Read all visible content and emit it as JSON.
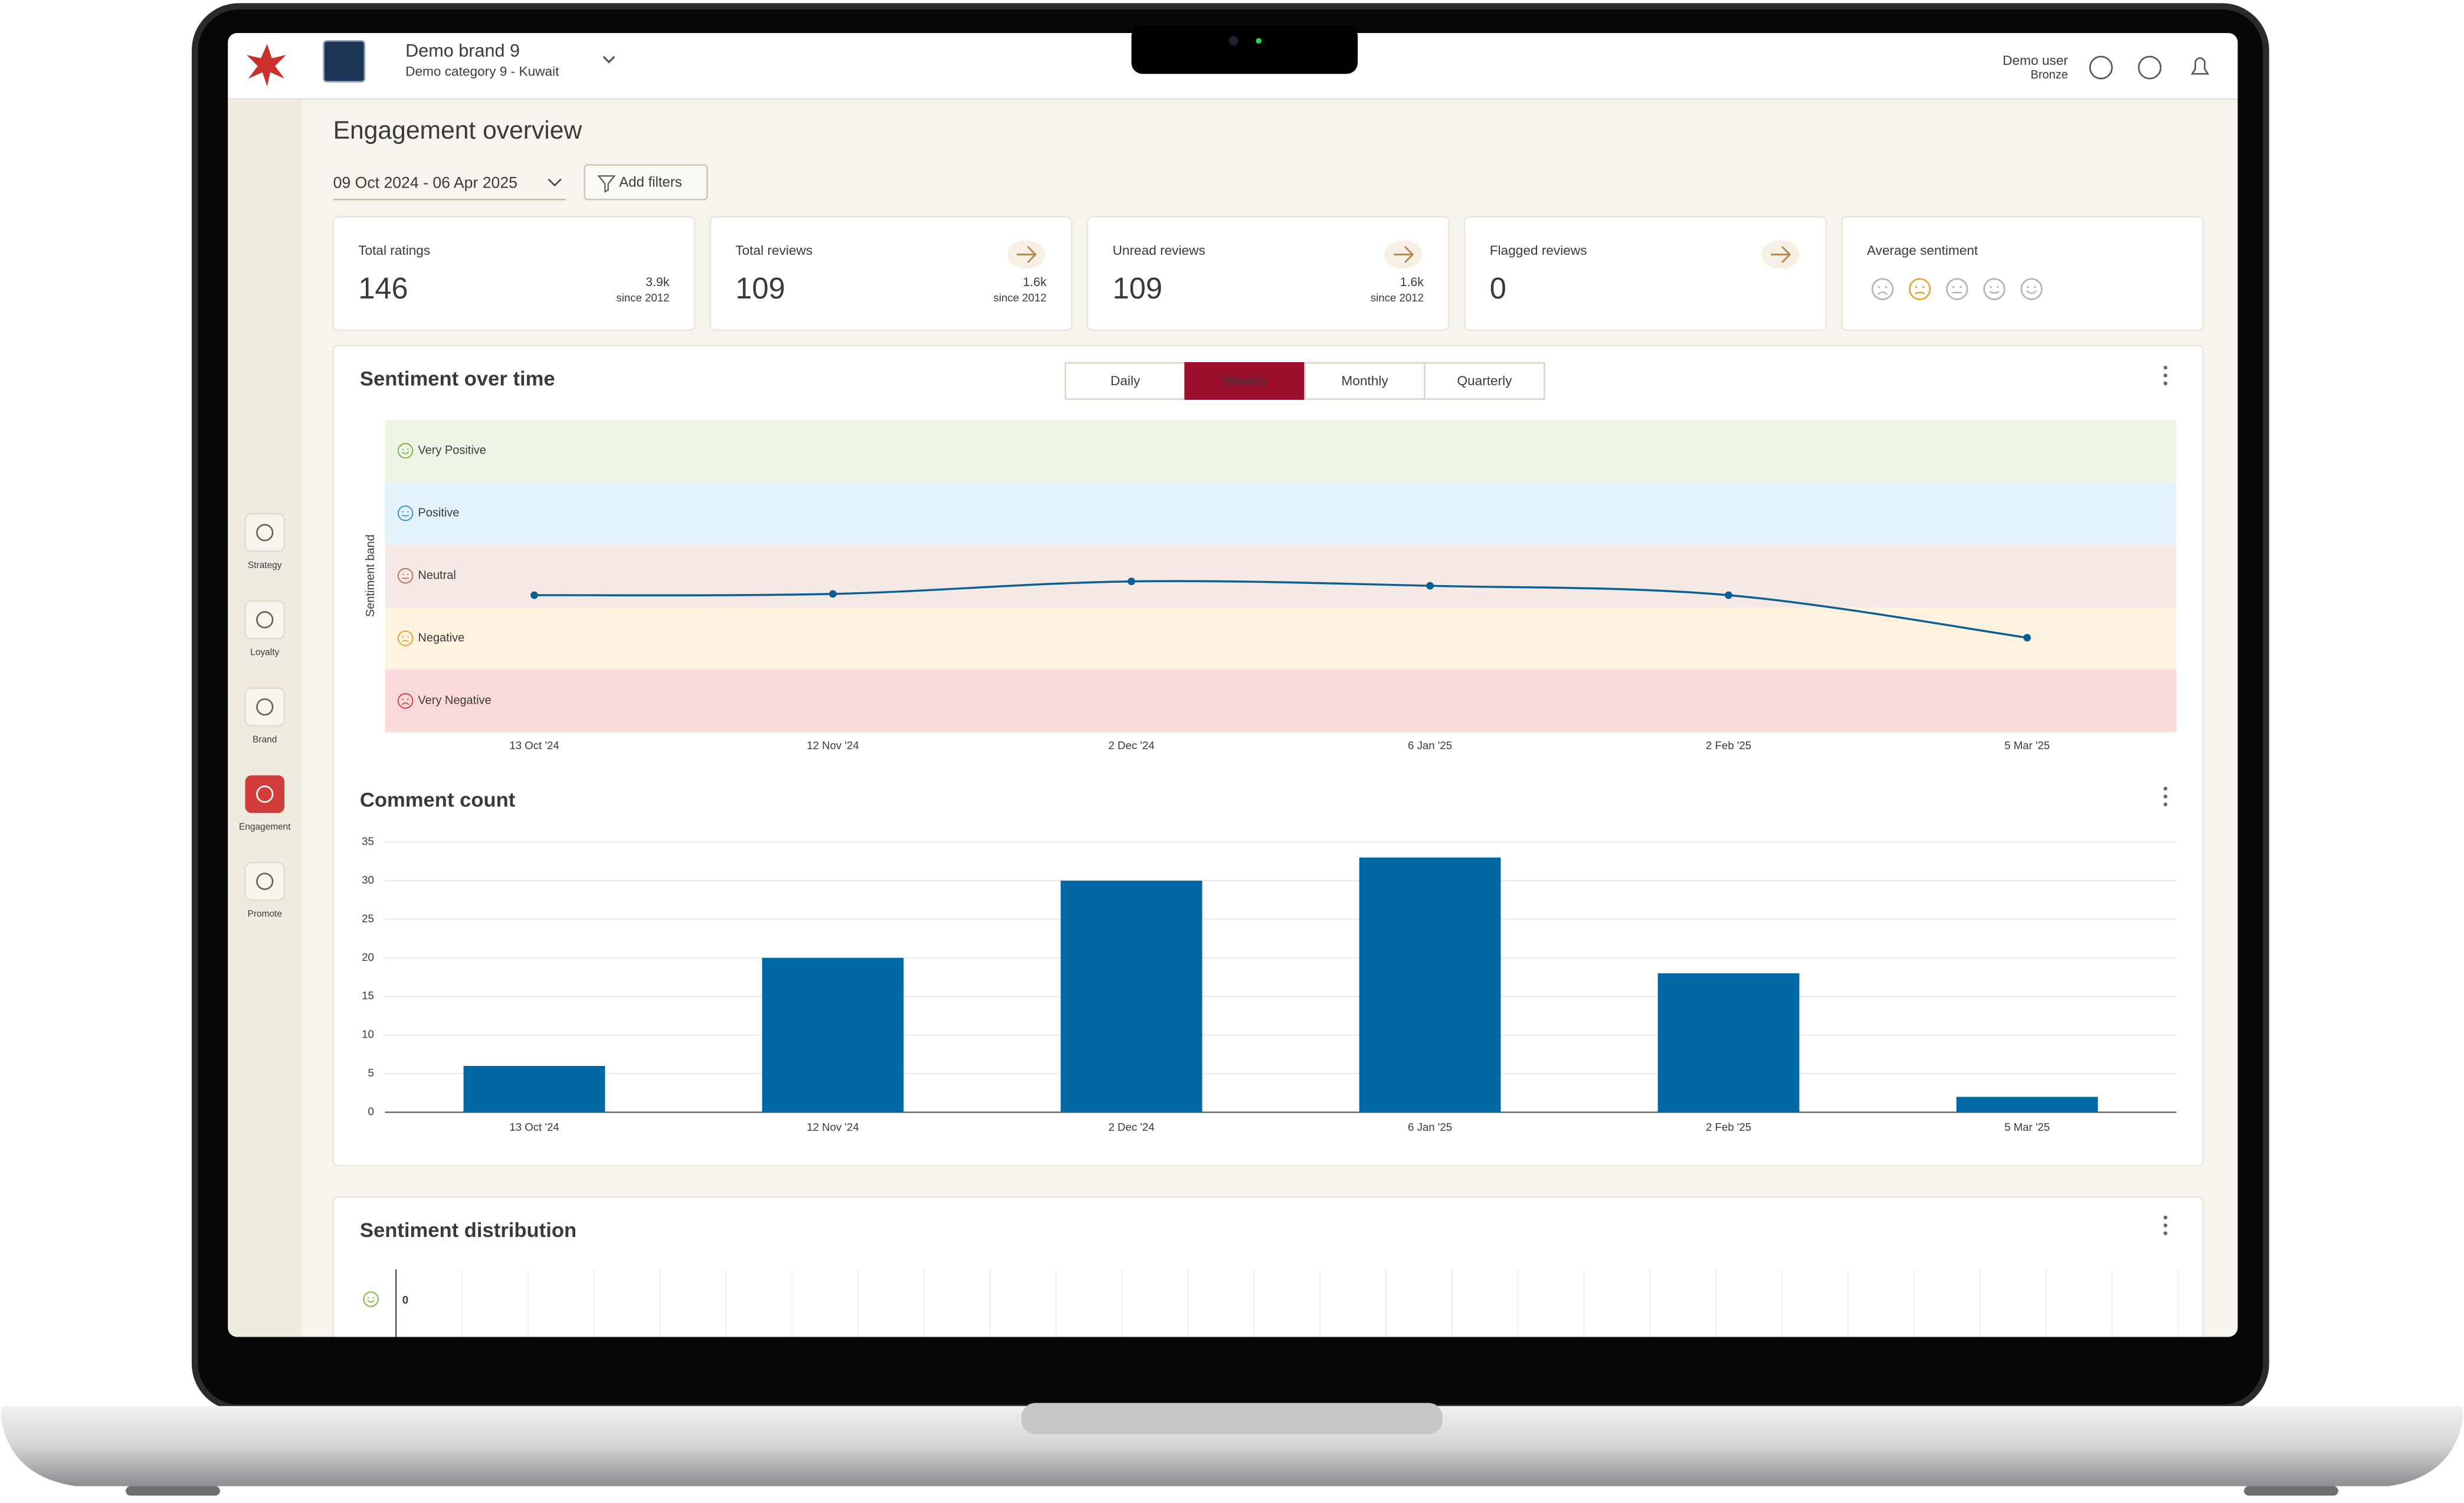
{
  "header": {
    "brand": "Demo brand 9",
    "category": "Demo category 9 - Kuwait",
    "user": "Demo user",
    "tier": "Bronze"
  },
  "sidebar": [
    "Strategy",
    "Loyalty",
    "Brand",
    "Engagement",
    "Promote"
  ],
  "active_nav": "Engagement",
  "page_title": "Engagement overview",
  "date_range": "09 Oct 2024 - 06 Apr 2025",
  "filter_button": "Add filters",
  "kpis": [
    {
      "label": "Total ratings",
      "value": 146,
      "total": "3.9k",
      "since": "since 2012",
      "link": false
    },
    {
      "label": "Total reviews",
      "value": 109,
      "total": "1.6k",
      "since": "since 2012",
      "link": true
    },
    {
      "label": "Unread reviews",
      "value": 109,
      "total": "1.6k",
      "since": "since 2012",
      "link": true
    },
    {
      "label": "Flagged reviews",
      "value": 0,
      "link": true
    },
    {
      "label": "Average sentiment",
      "level": 2
    }
  ],
  "periods": [
    "Daily",
    "Weekly",
    "Monthly",
    "Quarterly"
  ],
  "active_period": "Weekly",
  "chart_data": [
    {
      "type": "line",
      "title": "Sentiment over time",
      "y_label": "Sentiment band",
      "categories": [
        "13 Oct '24",
        "12 Nov '24",
        "2 Dec '24",
        "6 Jan '25",
        "2 Feb '25",
        "5 Mar '25"
      ],
      "values": [
        2.69,
        2.71,
        2.91,
        2.84,
        2.69,
        2.01
      ],
      "color": "#0b5f93",
      "ylim": [
        0.5,
        5.5
      ],
      "yticks": [
        {
          "value": 1,
          "label": "Very Negative"
        },
        {
          "value": 2,
          "label": "Negative"
        },
        {
          "value": 3,
          "label": "Neutral"
        },
        {
          "value": 4,
          "label": "Positive"
        },
        {
          "value": 5,
          "label": "Very Positive"
        }
      ],
      "band_colors": [
        "#fad9da",
        "#fdf3de",
        "#f5e9e5",
        "#e4f3fb",
        "#eef5e6"
      ],
      "icon_colors": [
        "#d84545",
        "#e3a637",
        "#c0705f",
        "#3c8fd0",
        "#7cb342"
      ]
    },
    {
      "type": "bar",
      "title": "Comment count",
      "categories": [
        "13 Oct '24",
        "12 Nov '24",
        "2 Dec '24",
        "6 Jan '25",
        "2 Feb '25",
        "5 Mar '25"
      ],
      "values": [
        6,
        20,
        30,
        33,
        18,
        2
      ],
      "color": "#0068a5",
      "ylim": [
        0,
        35
      ],
      "yticks": [
        0,
        5,
        10,
        15,
        20,
        25,
        30,
        35
      ],
      "grid": true
    }
  ],
  "distribution": {
    "title": "Sentiment distribution",
    "value": 0
  }
}
